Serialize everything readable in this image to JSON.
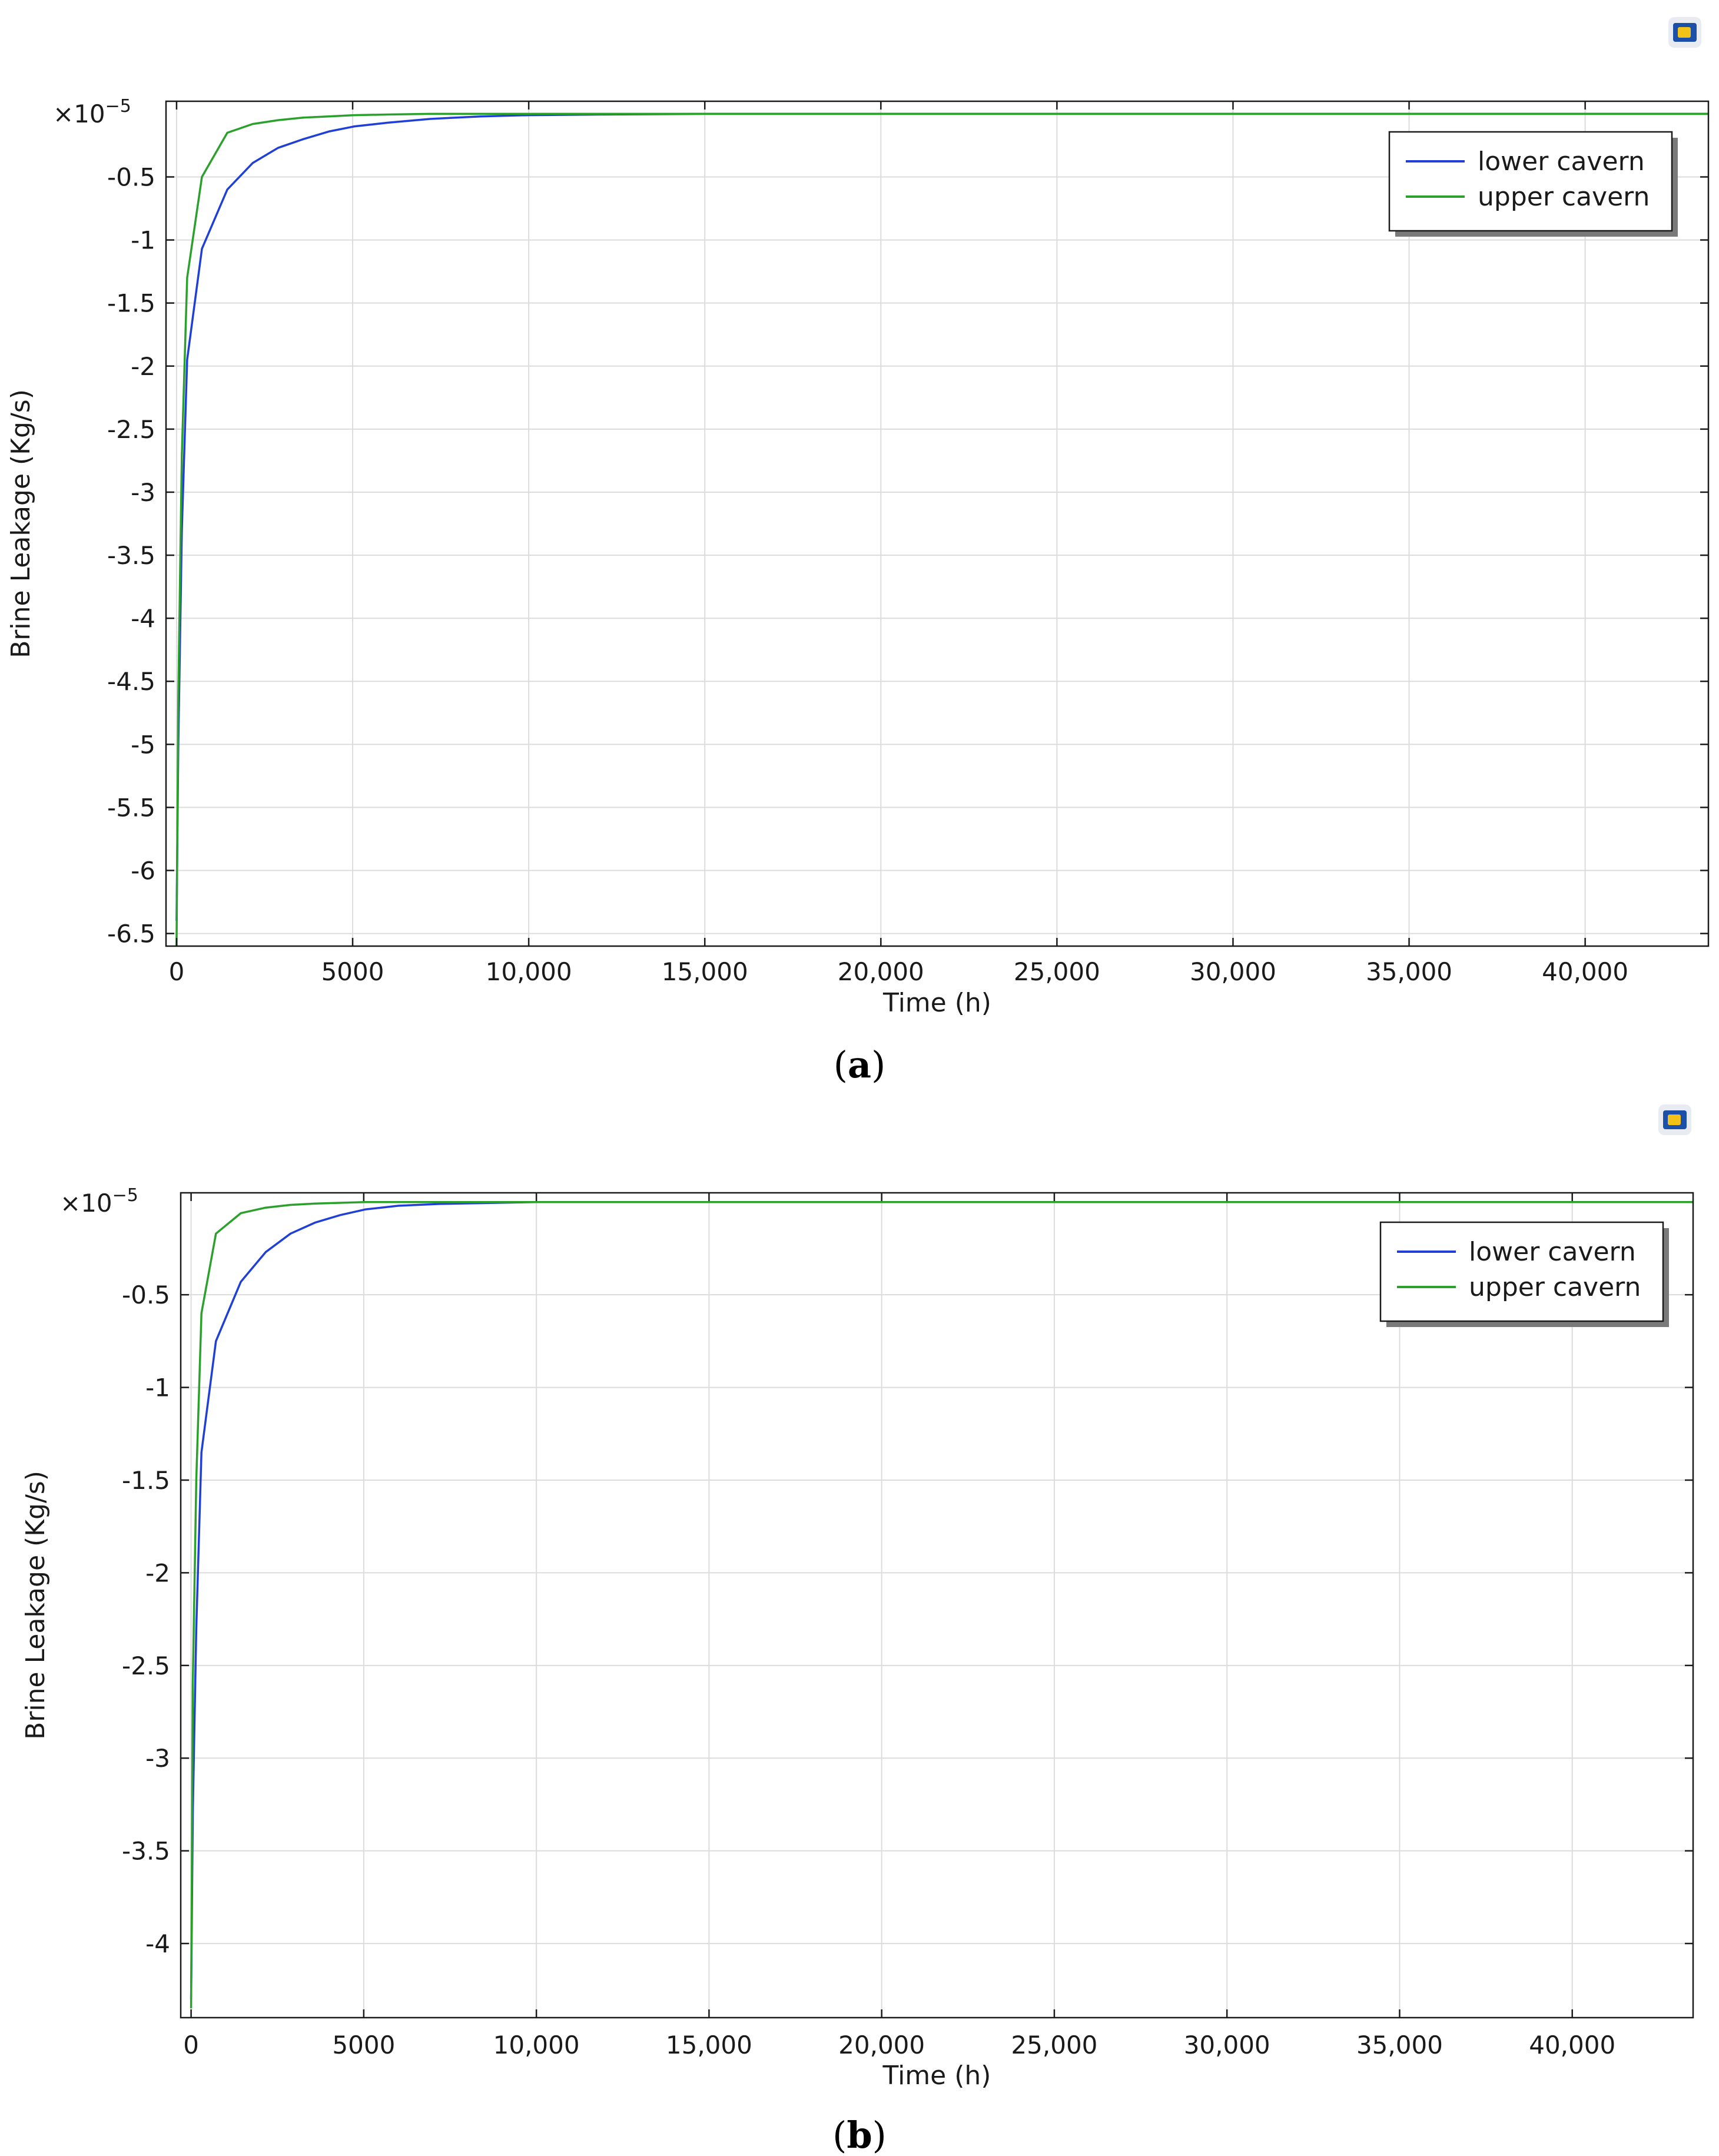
{
  "chart_data": [
    {
      "type": "line",
      "panel_label": "a",
      "xlabel": "Time (h)",
      "ylabel": "Brine Leakage (Kg/s)",
      "y_multiplier": "×10",
      "y_multiplier_exp": "−5",
      "xlim": [
        -300,
        43500
      ],
      "ylim": [
        -6.6,
        0.1
      ],
      "x_ticks": [
        0,
        5000,
        10000,
        15000,
        20000,
        25000,
        30000,
        35000,
        40000
      ],
      "x_tick_labels": [
        "0",
        "5000",
        "10,000",
        "15,000",
        "20,000",
        "25,000",
        "30,000",
        "35,000",
        "40,000"
      ],
      "y_ticks": [
        -0.5,
        -1,
        -1.5,
        -2,
        -2.5,
        -3,
        -3.5,
        -4,
        -4.5,
        -5,
        -5.5,
        -6,
        -6.5
      ],
      "y_tick_labels": [
        "-0.5",
        "-1",
        "-1.5",
        "-2",
        "-2.5",
        "-3",
        "-3.5",
        "-4",
        "-4.5",
        "-5",
        "-5.5",
        "-6",
        "-6.5"
      ],
      "grid": true,
      "legend_position": "top-right",
      "series": [
        {
          "name": "lower cavern",
          "color": "#1f3fd6",
          "x": [
            0,
            50,
            150,
            300,
            720,
            1440,
            2160,
            2880,
            3600,
            4320,
            5040,
            6000,
            7200,
            8640,
            10000,
            12000,
            15000,
            20000,
            25000,
            30000,
            35000,
            40000,
            43500
          ],
          "y": [
            -6.4,
            -5.0,
            -3.3,
            -1.95,
            -1.07,
            -0.6,
            -0.39,
            -0.27,
            -0.2,
            -0.14,
            -0.1,
            -0.07,
            -0.04,
            -0.02,
            -0.01,
            -0.005,
            0,
            0,
            0,
            0,
            0,
            0,
            0
          ]
        },
        {
          "name": "upper cavern",
          "color": "#2ca02c",
          "x": [
            0,
            50,
            150,
            300,
            720,
            1440,
            2160,
            2880,
            3600,
            4320,
            5040,
            6000,
            7200,
            8640,
            10000,
            12000,
            15000,
            20000,
            25000,
            30000,
            35000,
            40000,
            43500
          ],
          "y": [
            -6.6,
            -4.6,
            -2.7,
            -1.3,
            -0.5,
            -0.15,
            -0.08,
            -0.05,
            -0.03,
            -0.02,
            -0.01,
            -0.005,
            0,
            0,
            0,
            0,
            0,
            0,
            0,
            0,
            0,
            0,
            0
          ]
        }
      ]
    },
    {
      "type": "line",
      "panel_label": "b",
      "xlabel": "Time (h)",
      "ylabel": "Brine Leakage (Kg/s)",
      "y_multiplier": "×10",
      "y_multiplier_exp": "−5",
      "xlim": [
        -300,
        43500
      ],
      "ylim": [
        -4.4,
        0.05
      ],
      "x_ticks": [
        0,
        5000,
        10000,
        15000,
        20000,
        25000,
        30000,
        35000,
        40000
      ],
      "x_tick_labels": [
        "0",
        "5000",
        "10,000",
        "15,000",
        "20,000",
        "25,000",
        "30,000",
        "35,000",
        "40,000"
      ],
      "y_ticks": [
        -0.5,
        -1,
        -1.5,
        -2,
        -2.5,
        -3,
        -3.5,
        -4
      ],
      "y_tick_labels": [
        "-0.5",
        "-1",
        "-1.5",
        "-2",
        "-2.5",
        "-3",
        "-3.5",
        "-4"
      ],
      "grid": true,
      "legend_position": "top-right",
      "series": [
        {
          "name": "lower cavern",
          "color": "#1f3fd6",
          "x": [
            0,
            50,
            150,
            300,
            720,
            1440,
            2160,
            2880,
            3600,
            4320,
            5040,
            6000,
            7200,
            8640,
            10000,
            15000,
            20000,
            25000,
            30000,
            35000,
            40000,
            43500
          ],
          "y": [
            -4.3,
            -3.3,
            -2.3,
            -1.35,
            -0.75,
            -0.43,
            -0.27,
            -0.17,
            -0.11,
            -0.07,
            -0.04,
            -0.02,
            -0.01,
            -0.005,
            0,
            0,
            0,
            0,
            0,
            0,
            0,
            0
          ]
        },
        {
          "name": "upper cavern",
          "color": "#2ca02c",
          "x": [
            0,
            50,
            150,
            300,
            720,
            1440,
            2160,
            2880,
            3600,
            4320,
            5040,
            6000,
            7200,
            8640,
            10000,
            15000,
            20000,
            25000,
            30000,
            35000,
            40000,
            43500
          ],
          "y": [
            -4.35,
            -2.6,
            -1.5,
            -0.6,
            -0.17,
            -0.06,
            -0.03,
            -0.015,
            -0.008,
            -0.004,
            0,
            0,
            0,
            0,
            0,
            0,
            0,
            0,
            0,
            0,
            0,
            0
          ]
        }
      ]
    }
  ]
}
